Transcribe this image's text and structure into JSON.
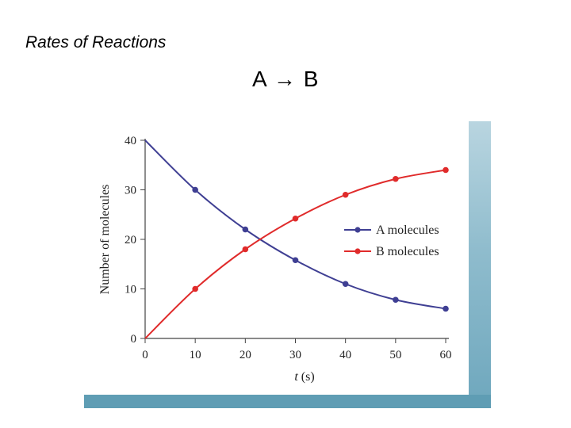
{
  "slide": {
    "title": "Rates of Reactions",
    "reaction": "A → B"
  },
  "chart_data": {
    "type": "line",
    "title": "",
    "xlabel_var": "t",
    "xlabel_unit": " (s)",
    "ylabel": "Number of molecules",
    "xlim": [
      0,
      60
    ],
    "ylim": [
      0,
      40
    ],
    "xticks": [
      0,
      10,
      20,
      30,
      40,
      50,
      60
    ],
    "yticks": [
      0,
      10,
      20,
      30,
      40
    ],
    "grid": false,
    "legend_position": "center-right",
    "series": [
      {
        "name": "A molecules",
        "color": "#3f3f93",
        "x": [
          0,
          10,
          20,
          30,
          40,
          50,
          60
        ],
        "y": [
          40,
          30,
          22,
          15.8,
          11,
          7.8,
          6
        ]
      },
      {
        "name": "B molecules",
        "color": "#e02b2b",
        "x": [
          0,
          10,
          20,
          30,
          40,
          50,
          60
        ],
        "y": [
          0,
          10,
          18,
          24.2,
          29,
          32.2,
          34
        ]
      }
    ]
  }
}
